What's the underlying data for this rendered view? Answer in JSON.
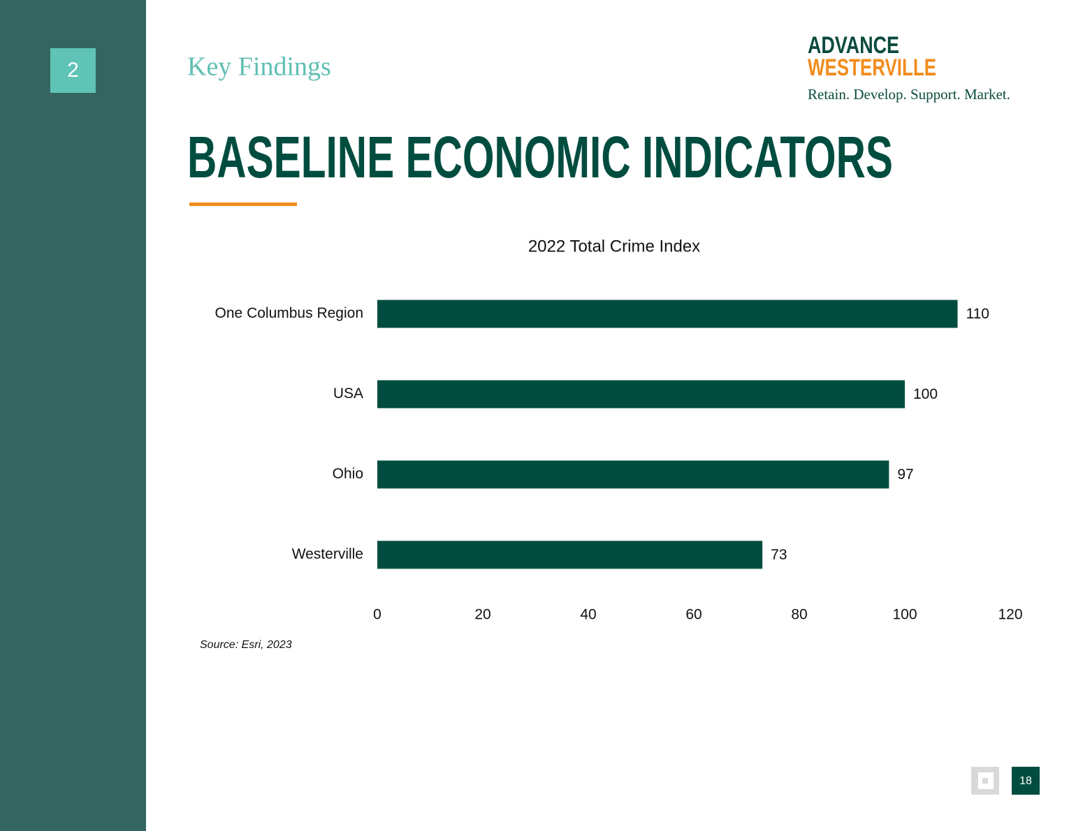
{
  "section_number": "2",
  "section_label": "Key Findings",
  "logo": {
    "line1": "ADVANCE",
    "line2": "WESTERVILLE",
    "tagline": "Retain. Develop. Support. Market."
  },
  "title": "BASELINE ECONOMIC INDICATORS",
  "chart_data": {
    "type": "bar",
    "orientation": "horizontal",
    "title": "2022 Total Crime Index",
    "categories": [
      "One Columbus Region",
      "USA",
      "Ohio",
      "Westerville"
    ],
    "values": [
      110,
      100,
      97,
      73
    ],
    "color": "#004d40",
    "xlim": [
      0,
      120
    ],
    "xticks": [
      0,
      20,
      40,
      60,
      80,
      100,
      120
    ],
    "grid": false
  },
  "source": "Source: Esri, 2023",
  "page_number": "18"
}
